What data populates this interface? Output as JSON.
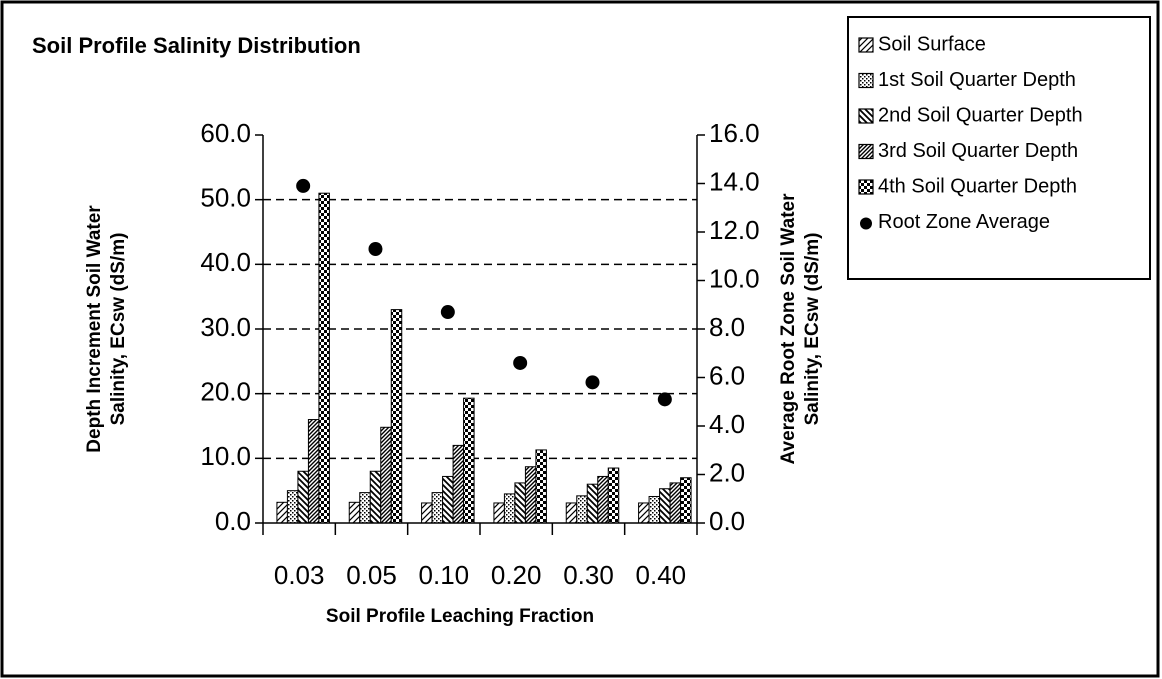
{
  "chart_data": {
    "type": "bar",
    "title": "Soil Profile Salinity Distribution",
    "xlabel": "Soil Profile Leaching Fraction",
    "ylabel": [
      "Depth Increment Soil Water",
      "Salinity, ECsw (dS/m)"
    ],
    "y2label": [
      "Average Root Zone Soil Water",
      "Salinity, ECsw (dS/m)"
    ],
    "categories": [
      "0.03",
      "0.05",
      "0.10",
      "0.20",
      "0.30",
      "0.40"
    ],
    "series": [
      {
        "name": "Soil Surface",
        "color": "#000000",
        "values": [
          3.2,
          3.2,
          3.1,
          3.1,
          3.1,
          3.1
        ]
      },
      {
        "name": "1st Soil Quarter Depth",
        "color": "#000000",
        "values": [
          5.0,
          4.7,
          4.7,
          4.5,
          4.2,
          4.1
        ]
      },
      {
        "name": "2nd Soil Quarter Depth",
        "color": "#000000",
        "values": [
          8.0,
          8.0,
          7.2,
          6.2,
          6.0,
          5.3
        ]
      },
      {
        "name": "3rd Soil Quarter Depth",
        "color": "#000000",
        "values": [
          16.0,
          14.8,
          12.0,
          8.7,
          7.2,
          6.2
        ]
      },
      {
        "name": "4th Soil Quarter Depth",
        "color": "#000000",
        "values": [
          51.0,
          33.0,
          19.3,
          11.3,
          8.5,
          7.0
        ]
      },
      {
        "name": "Root Zone Average",
        "type": "scatter",
        "axis": "y2",
        "color": "#000000",
        "values": [
          13.9,
          11.3,
          8.7,
          6.6,
          5.8,
          5.1
        ]
      }
    ],
    "ylim": [
      0,
      60
    ],
    "yticks": [
      {
        "value": 0,
        "label": "0.0"
      },
      {
        "value": 10,
        "label": "10.0"
      },
      {
        "value": 20,
        "label": "20.0"
      },
      {
        "value": 30,
        "label": "30.0"
      },
      {
        "value": 40,
        "label": "40.0"
      },
      {
        "value": 50,
        "label": "50.0"
      },
      {
        "value": 60,
        "label": "60.0"
      }
    ],
    "y2lim": [
      0,
      16
    ],
    "y2ticks": [
      {
        "value": 0,
        "label": "0.0"
      },
      {
        "value": 2,
        "label": "2.0"
      },
      {
        "value": 4,
        "label": "4.0"
      },
      {
        "value": 6,
        "label": "6.0"
      },
      {
        "value": 8,
        "label": "8.0"
      },
      {
        "value": 10,
        "label": "10.0"
      },
      {
        "value": 12,
        "label": "12.0"
      },
      {
        "value": 14,
        "label": "14.0"
      },
      {
        "value": 16,
        "label": "16.0"
      }
    ],
    "grid": true,
    "legend": "upper right"
  }
}
